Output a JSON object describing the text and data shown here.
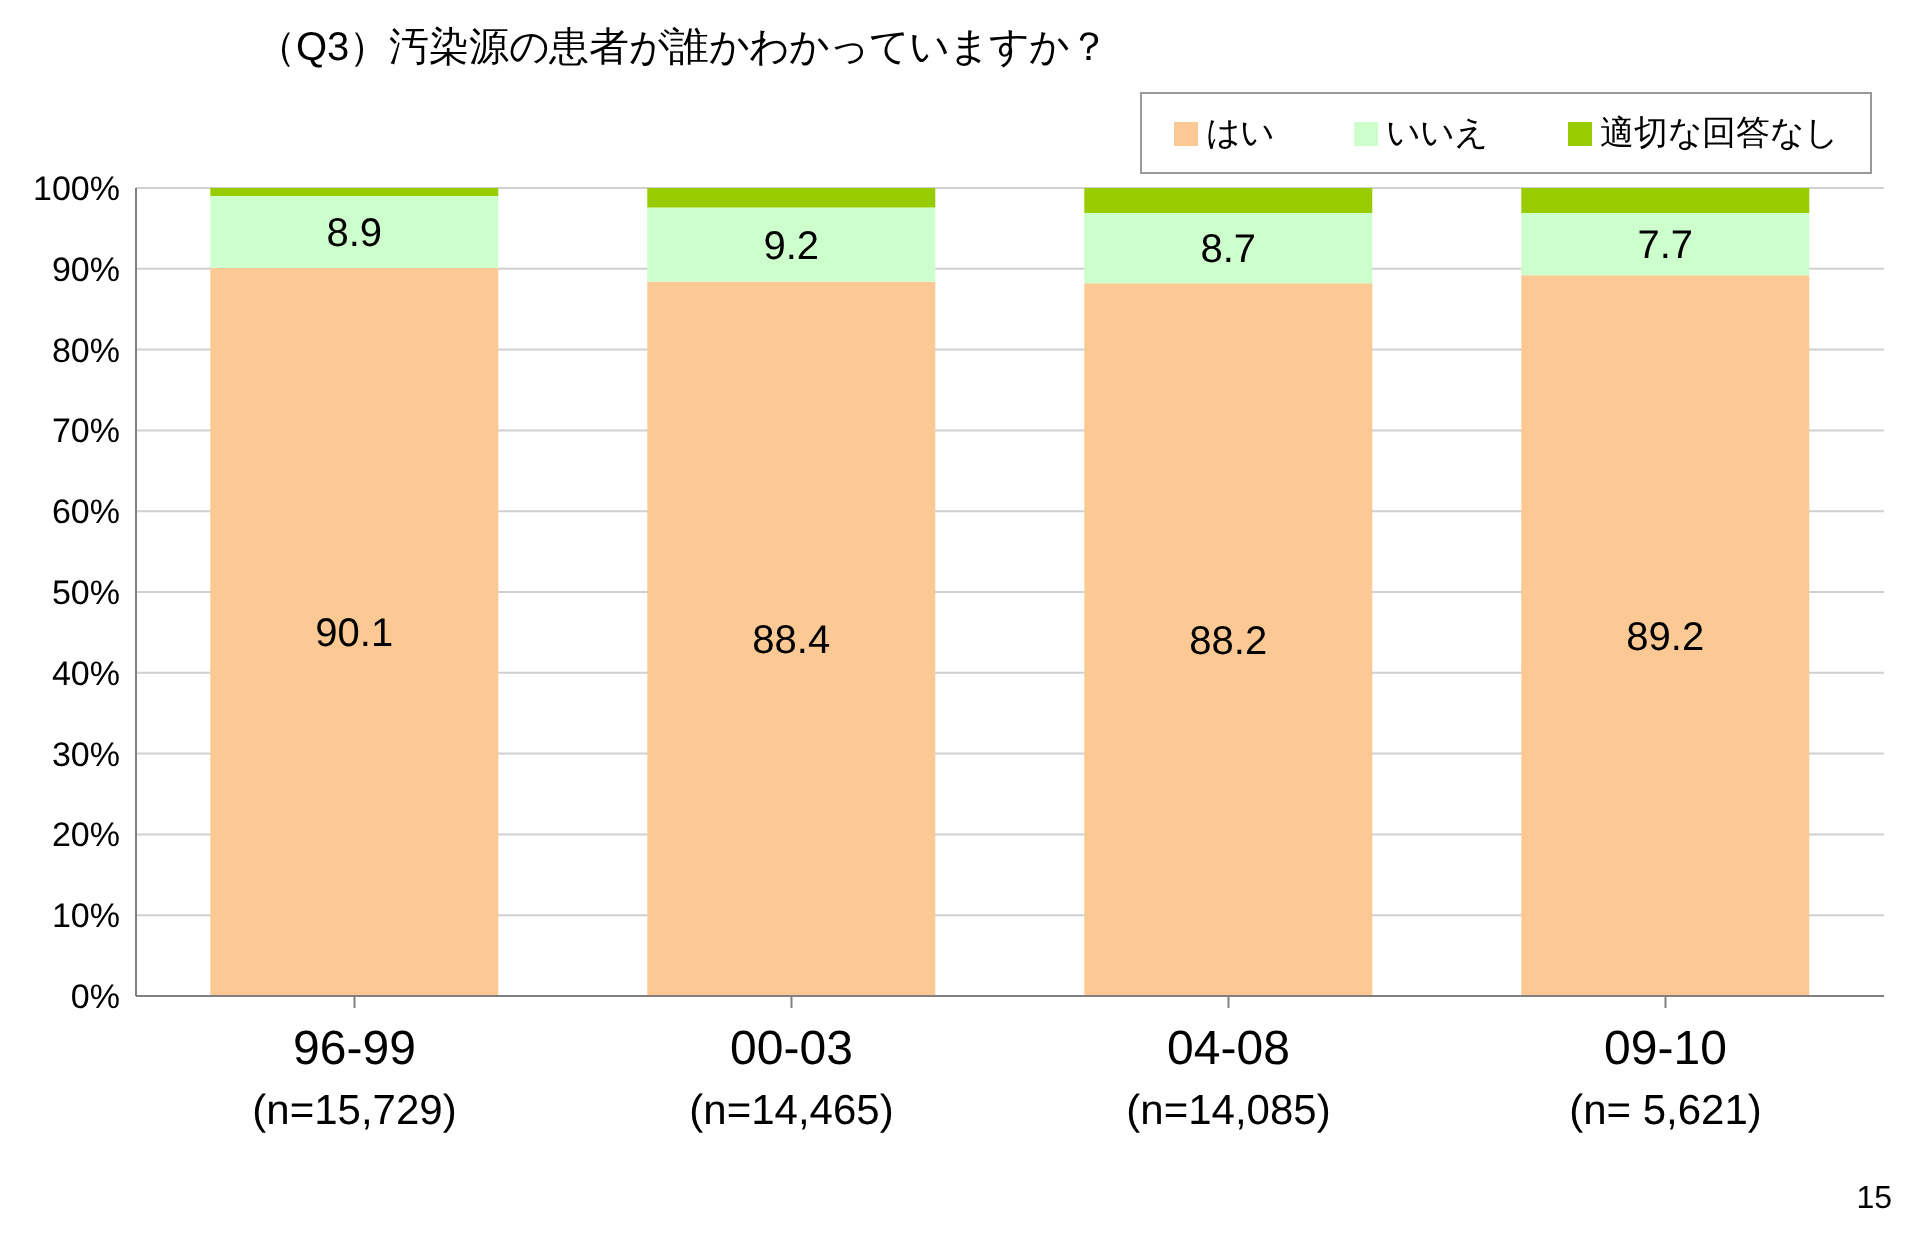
{
  "chart_data": {
    "type": "bar",
    "stacked": true,
    "title": "（Q3）汚染源の患者が誰かわかっていますか？",
    "categories": [
      "96-99\n(n=15,729)",
      "00-03\n(n=14,465)",
      "04-08\n(n=14,085)",
      "09-10\n(n= 5,621)"
    ],
    "series": [
      {
        "name": "はい",
        "color": "#fcc994",
        "values": [
          90.1,
          88.4,
          88.2,
          89.2
        ],
        "value_labels": [
          "90.1",
          "88.4",
          "88.2",
          "89.2"
        ]
      },
      {
        "name": "いいえ",
        "color": "#ccffcc",
        "values": [
          8.9,
          9.2,
          8.7,
          7.7
        ],
        "value_labels": [
          "8.9",
          "9.2",
          "8.7",
          "7.7"
        ]
      },
      {
        "name": "適切な回答なし",
        "color": "#99cc00",
        "values": [
          1.0,
          2.4,
          3.1,
          3.1
        ],
        "value_labels": [
          null,
          null,
          null,
          null
        ]
      }
    ],
    "ylim": [
      0,
      100
    ],
    "yticks": [
      {
        "value": 0,
        "label": "0%"
      },
      {
        "value": 10,
        "label": "10%"
      },
      {
        "value": 20,
        "label": "20%"
      },
      {
        "value": 30,
        "label": "30%"
      },
      {
        "value": 40,
        "label": "40%"
      },
      {
        "value": 50,
        "label": "50%"
      },
      {
        "value": 60,
        "label": "60%"
      },
      {
        "value": 70,
        "label": "70%"
      },
      {
        "value": 80,
        "label": "80%"
      },
      {
        "value": 90,
        "label": "90%"
      },
      {
        "value": 100,
        "label": "100%"
      }
    ],
    "grid": "y",
    "legend": "top right",
    "annotations": [
      "15"
    ]
  }
}
